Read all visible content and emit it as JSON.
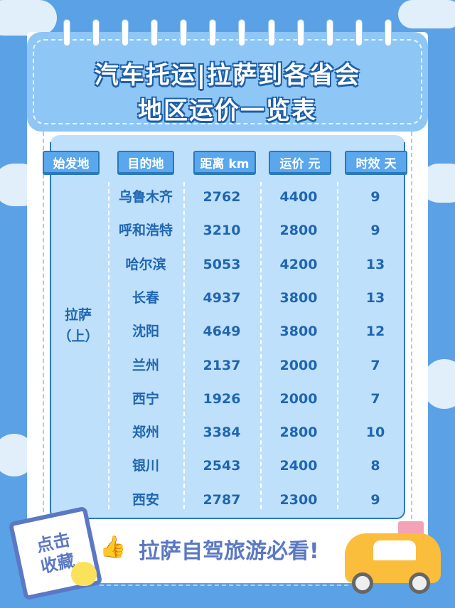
{
  "header": {
    "title_line1": "汽车托运|拉萨到各省会",
    "title_line2": "地区运价一览表"
  },
  "table": {
    "columns": [
      "始发地",
      "目的地",
      "距离 km",
      "运价 元",
      "时效 天"
    ],
    "origin_line1": "拉萨",
    "origin_line2": "（上）",
    "rows": [
      [
        "乌鲁木齐",
        "2762",
        "4400",
        "9"
      ],
      [
        "呼和浩特",
        "3210",
        "2800",
        "9"
      ],
      [
        "哈尔滨",
        "5053",
        "4200",
        "13"
      ],
      [
        "长春",
        "4937",
        "3800",
        "13"
      ],
      [
        "沈阳",
        "4649",
        "3800",
        "12"
      ],
      [
        "兰州",
        "2137",
        "2000",
        "7"
      ],
      [
        "西宁",
        "1926",
        "2000",
        "7"
      ],
      [
        "郑州",
        "3384",
        "2800",
        "10"
      ],
      [
        "银川",
        "2543",
        "2400",
        "8"
      ],
      [
        "西安",
        "2787",
        "2300",
        "9"
      ]
    ]
  },
  "footer": {
    "sticker_line1": "点击",
    "sticker_line2": "收藏",
    "banner": "拉萨自驾旅游必看!"
  },
  "colors": {
    "background": "#5ba1e6",
    "header": "#8ec6f5",
    "table": "#bfe0fb",
    "text": "#1f66b0",
    "chip": "#5aa7ec"
  }
}
